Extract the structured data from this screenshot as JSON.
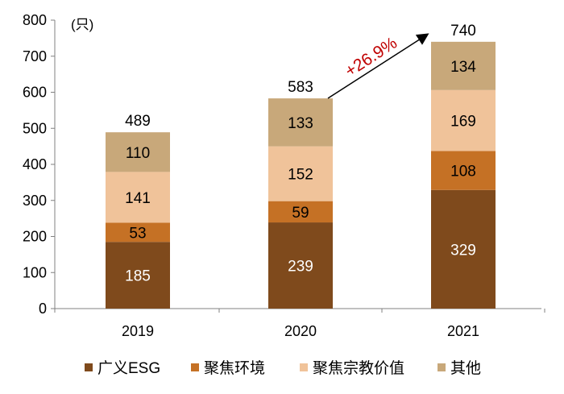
{
  "chart_data": {
    "type": "bar",
    "stacked": true,
    "unit_label": "(只)",
    "categories": [
      "2019",
      "2020",
      "2021"
    ],
    "series": [
      {
        "name": "广义ESG",
        "values": [
          185,
          239,
          329
        ],
        "color": "#7F4A1C"
      },
      {
        "name": "聚焦环境",
        "values": [
          53,
          59,
          108
        ],
        "color": "#C57125"
      },
      {
        "name": "聚焦宗教价值",
        "values": [
          141,
          152,
          169
        ],
        "color": "#F0C39A"
      },
      {
        "name": "其他",
        "values": [
          110,
          133,
          134
        ],
        "color": "#C8A87A"
      }
    ],
    "totals": [
      489,
      583,
      740
    ],
    "ylim": [
      0,
      800
    ],
    "yticks": [
      0,
      100,
      200,
      300,
      400,
      500,
      600,
      700,
      800
    ],
    "grid": false,
    "legend": "bottom",
    "annotation": {
      "text": "+26.9%",
      "color": "#C00000",
      "from": "2020",
      "to": "2021"
    }
  }
}
